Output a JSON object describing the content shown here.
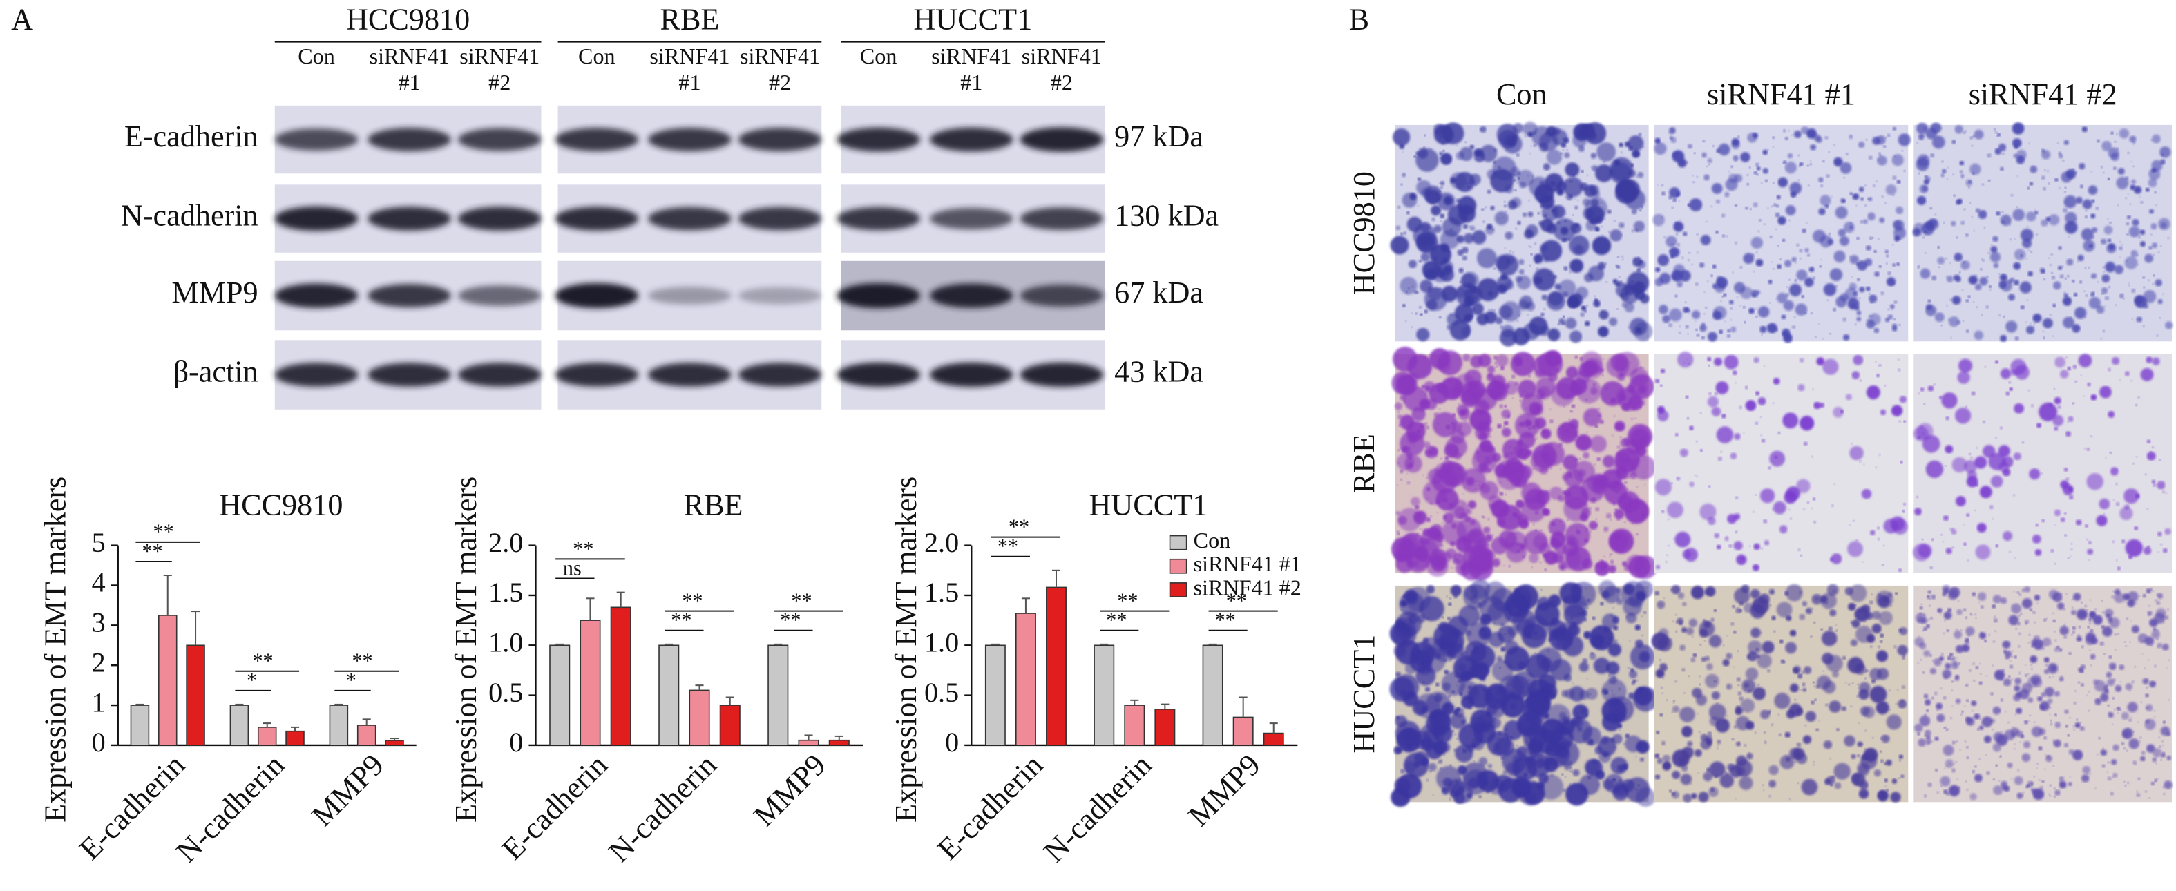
{
  "panel_a_label": "A",
  "panel_b_label": "B",
  "western_blot": {
    "groups": [
      {
        "cell_line": "HCC9810",
        "lanes": [
          [
            "Con"
          ],
          [
            "siRNF41",
            "#1"
          ],
          [
            "siRNF41",
            "#2"
          ]
        ]
      },
      {
        "cell_line": "RBE",
        "lanes": [
          [
            "Con"
          ],
          [
            "siRNF41",
            "#1"
          ],
          [
            "siRNF41",
            "#2"
          ]
        ]
      },
      {
        "cell_line": "HUCCT1",
        "lanes": [
          [
            "Con"
          ],
          [
            "siRNF41",
            "#1"
          ],
          [
            "siRNF41",
            "#2"
          ]
        ]
      }
    ],
    "proteins": [
      {
        "name": "E-cadherin",
        "size": "97 kDa"
      },
      {
        "name": "N-cadherin",
        "size": "130 kDa"
      },
      {
        "name": "MMP9",
        "size": "67 kDa"
      },
      {
        "name": "β-actin",
        "size": "43 kDa"
      }
    ]
  },
  "chart_data": [
    {
      "type": "bar",
      "title": "HCC9810",
      "y_label": "Expression of EMT markers",
      "categories": [
        "E-cadherin",
        "N-cadherin",
        "MMP9"
      ],
      "series": [
        {
          "name": "Con",
          "color": "#c8c8c8",
          "values": [
            1,
            1,
            1
          ],
          "errors": [
            0.02,
            0.02,
            0.02
          ]
        },
        {
          "name": "siRNF41 #1",
          "color": "#f08a96",
          "values": [
            3.25,
            0.45,
            0.5
          ],
          "errors": [
            1.0,
            0.1,
            0.15
          ]
        },
        {
          "name": "siRNF41 #2",
          "color": "#e01e1e",
          "values": [
            2.5,
            0.35,
            0.12
          ],
          "errors": [
            0.85,
            0.1,
            0.05
          ]
        }
      ],
      "significance": [
        [
          "**",
          "**"
        ],
        [
          "*",
          "**"
        ],
        [
          "*",
          "**"
        ]
      ],
      "ylim": [
        0,
        5
      ],
      "yticks": [
        0,
        1,
        2,
        3,
        4,
        5
      ]
    },
    {
      "type": "bar",
      "title": "RBE",
      "y_label": "Expression of EMT markers",
      "categories": [
        "E-cadherin",
        "N-cadherin",
        "MMP9"
      ],
      "series": [
        {
          "name": "Con",
          "color": "#c8c8c8",
          "values": [
            1,
            1,
            1
          ],
          "errors": [
            0.01,
            0.01,
            0.01
          ]
        },
        {
          "name": "siRNF41 #1",
          "color": "#f08a96",
          "values": [
            1.25,
            0.55,
            0.05
          ],
          "errors": [
            0.22,
            0.05,
            0.05
          ]
        },
        {
          "name": "siRNF41 #2",
          "color": "#e01e1e",
          "values": [
            1.38,
            0.4,
            0.05
          ],
          "errors": [
            0.15,
            0.08,
            0.04
          ]
        }
      ],
      "significance": [
        [
          "ns",
          "**"
        ],
        [
          "**",
          "**"
        ],
        [
          "**",
          "**"
        ]
      ],
      "ylim": [
        0,
        2
      ],
      "yticks": [
        0,
        0.5,
        {
          "value": 1,
          "label": "1.0"
        },
        1.5,
        {
          "value": 2,
          "label": "2.0"
        }
      ]
    },
    {
      "type": "bar",
      "title": "HUCCT1",
      "y_label": "Expression of EMT markers",
      "categories": [
        "E-cadherin",
        "N-cadherin",
        "MMP9"
      ],
      "series": [
        {
          "name": "Con",
          "color": "#c8c8c8",
          "values": [
            1,
            1,
            1
          ],
          "errors": [
            0.01,
            0.01,
            0.01
          ]
        },
        {
          "name": "siRNF41 #1",
          "color": "#f08a96",
          "values": [
            1.32,
            0.4,
            0.28
          ],
          "errors": [
            0.15,
            0.05,
            0.2
          ]
        },
        {
          "name": "siRNF41 #2",
          "color": "#e01e1e",
          "values": [
            1.58,
            0.36,
            0.12
          ],
          "errors": [
            0.17,
            0.05,
            0.1
          ]
        }
      ],
      "significance": [
        [
          "**",
          "**"
        ],
        [
          "**",
          "**"
        ],
        [
          "**",
          "**"
        ]
      ],
      "ylim": [
        0,
        2
      ],
      "yticks": [
        0,
        0.5,
        {
          "value": 1,
          "label": "1.0"
        },
        1.5,
        {
          "value": 2,
          "label": "2.0"
        }
      ],
      "legend": "upper right"
    }
  ],
  "transwell": {
    "columns": [
      "Con",
      "siRNF41 #1",
      "siRNF41 #2"
    ],
    "rows": [
      "HCC9810",
      "RBE",
      "HUCCT1"
    ]
  }
}
